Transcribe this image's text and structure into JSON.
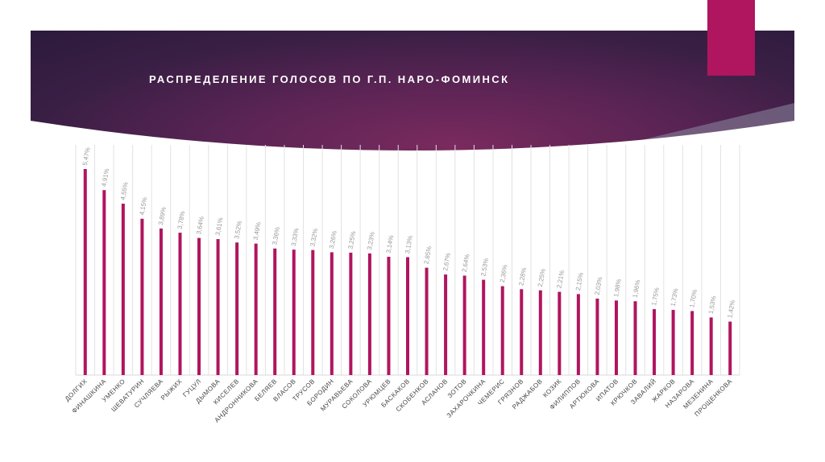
{
  "title": "РАСПРЕДЕЛЕНИЕ ГОЛОСОВ ПО Г.П. НАРО-ФОМИНСК",
  "colors": {
    "bar": "#b0155f",
    "header": "#3a1f45",
    "accent": "#b0155f"
  },
  "chart_data": {
    "type": "bar",
    "title": "",
    "xlabel": "",
    "ylabel": "",
    "ylim": [
      0,
      6
    ],
    "grid": true,
    "categories": [
      "ДОЛГИХ",
      "ФИНАШКИНА",
      "УМЕНКО",
      "ШЕВАТУРИН",
      "СУЧЛЯЕВА",
      "РЫЖИХ",
      "ГУЦУЛ",
      "ДЫМОВА",
      "КИСЕЛЕВ",
      "АНДРОННИКОВА",
      "БЕЛЯЕВ",
      "ВЛАСОВ",
      "ТРУСОВ",
      "БОРОДИН",
      "МУРАВЬЕВА",
      "СОКОЛОВА",
      "УРЮМЦЕВ",
      "БАСКАКОВ",
      "СКОБЕНКОВ",
      "АСЛАНОВ",
      "ЗОТОВ",
      "ЗАХАРОЧКИНА",
      "ЧЕМЕРИС",
      "ГРЯЗНОВ",
      "РАДЖАБОВ",
      "КОЗИК",
      "ФИЛИППОВ",
      "АРТЮКОВА",
      "ИПАТОВ",
      "КРЮЧКОВ",
      "ЗАВАЛИЙ",
      "ЖАРКОВ",
      "НАЗАРОВА",
      "МЕЗЕНИНА",
      "ПРОЩЕНКОВА"
    ],
    "values": [
      5.47,
      4.91,
      4.55,
      4.15,
      3.89,
      3.78,
      3.64,
      3.61,
      3.52,
      3.49,
      3.36,
      3.33,
      3.32,
      3.26,
      3.25,
      3.23,
      3.14,
      3.13,
      2.85,
      2.67,
      2.64,
      2.53,
      2.36,
      2.28,
      2.25,
      2.21,
      2.15,
      2.03,
      1.98,
      1.96,
      1.75,
      1.73,
      1.7,
      1.53,
      1.42
    ],
    "labels": [
      "5,47%",
      "4,91%",
      "4,55%",
      "4,15%",
      "3,89%",
      "3,78%",
      "3,64%",
      "3,61%",
      "3,52%",
      "3,49%",
      "3,36%",
      "3,33%",
      "3,32%",
      "3,26%",
      "3,25%",
      "3,23%",
      "3,14%",
      "3,13%",
      "2,85%",
      "2,67%",
      "2,64%",
      "2,53%",
      "2,36%",
      "2,28%",
      "2,25%",
      "2,21%",
      "2,15%",
      "2,03%",
      "1,98%",
      "1,96%",
      "1,75%",
      "1,73%",
      "1,70%",
      "1,53%",
      "1,42%"
    ]
  }
}
